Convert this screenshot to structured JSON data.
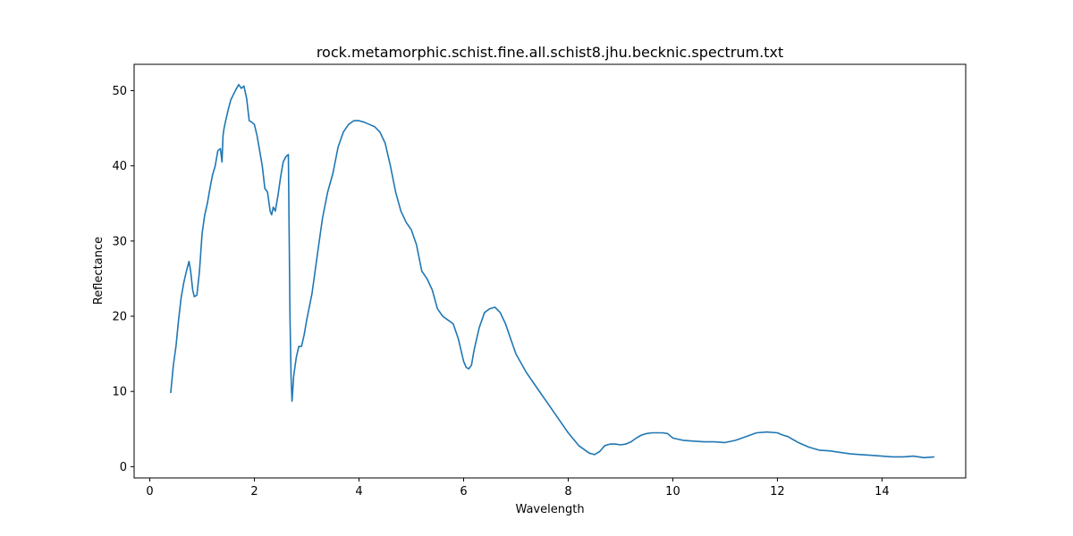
{
  "chart_data": {
    "type": "line",
    "title": "rock.metamorphic.schist.fine.all.schist8.jhu.becknic.spectrum.txt",
    "xlabel": "Wavelength",
    "ylabel": "Reflectance",
    "xlim": [
      -0.3,
      15.6
    ],
    "ylim": [
      -1.5,
      53.5
    ],
    "xticks": [
      0,
      2,
      4,
      6,
      8,
      10,
      12,
      14
    ],
    "yticks": [
      0,
      10,
      20,
      30,
      40,
      50
    ],
    "grid": false,
    "legend": "none",
    "series": [
      {
        "color": "#1f77b4",
        "x": [
          0.4,
          0.45,
          0.5,
          0.55,
          0.6,
          0.65,
          0.7,
          0.75,
          0.78,
          0.82,
          0.85,
          0.9,
          0.95,
          1.0,
          1.05,
          1.1,
          1.15,
          1.2,
          1.25,
          1.3,
          1.35,
          1.38,
          1.4,
          1.42,
          1.45,
          1.5,
          1.55,
          1.6,
          1.65,
          1.7,
          1.75,
          1.8,
          1.85,
          1.9,
          1.95,
          2.0,
          2.05,
          2.1,
          2.15,
          2.2,
          2.25,
          2.3,
          2.33,
          2.36,
          2.4,
          2.45,
          2.5,
          2.55,
          2.6,
          2.65,
          2.68,
          2.7,
          2.72,
          2.75,
          2.8,
          2.85,
          2.9,
          2.95,
          3.0,
          3.1,
          3.2,
          3.3,
          3.4,
          3.5,
          3.6,
          3.7,
          3.8,
          3.9,
          4.0,
          4.1,
          4.2,
          4.3,
          4.4,
          4.5,
          4.6,
          4.7,
          4.8,
          4.9,
          5.0,
          5.1,
          5.2,
          5.3,
          5.4,
          5.5,
          5.6,
          5.7,
          5.8,
          5.9,
          6.0,
          6.05,
          6.1,
          6.15,
          6.2,
          6.3,
          6.4,
          6.5,
          6.6,
          6.7,
          6.8,
          6.9,
          7.0,
          7.2,
          7.4,
          7.6,
          7.8,
          8.0,
          8.2,
          8.4,
          8.5,
          8.6,
          8.7,
          8.8,
          8.9,
          9.0,
          9.1,
          9.2,
          9.3,
          9.4,
          9.5,
          9.6,
          9.7,
          9.8,
          9.9,
          10.0,
          10.2,
          10.4,
          10.6,
          10.8,
          11.0,
          11.2,
          11.4,
          11.6,
          11.8,
          12.0,
          12.1,
          12.2,
          12.4,
          12.6,
          12.8,
          13.0,
          13.2,
          13.4,
          13.6,
          13.8,
          14.0,
          14.2,
          14.4,
          14.6,
          14.8,
          15.0
        ],
        "y": [
          9.8,
          13.5,
          16.0,
          19.5,
          22.5,
          24.5,
          26.0,
          27.3,
          26.0,
          23.5,
          22.6,
          22.8,
          26.0,
          31.0,
          33.5,
          35.0,
          37.0,
          38.8,
          40.0,
          42.0,
          42.3,
          40.5,
          44.0,
          45.0,
          46.0,
          47.5,
          48.8,
          49.5,
          50.2,
          50.8,
          50.3,
          50.6,
          49.0,
          46.0,
          45.8,
          45.5,
          44.0,
          42.0,
          40.0,
          37.0,
          36.5,
          34.0,
          33.5,
          34.5,
          34.0,
          36.0,
          38.5,
          40.5,
          41.2,
          41.5,
          20.0,
          12.0,
          8.7,
          12.0,
          14.5,
          16.0,
          16.0,
          17.5,
          19.5,
          23.0,
          28.0,
          33.0,
          36.5,
          39.0,
          42.5,
          44.5,
          45.5,
          46.0,
          46.0,
          45.8,
          45.5,
          45.2,
          44.5,
          43.0,
          40.0,
          36.5,
          34.0,
          32.5,
          31.5,
          29.5,
          26.0,
          25.0,
          23.5,
          21.0,
          20.0,
          19.5,
          19.0,
          17.0,
          14.0,
          13.2,
          13.0,
          13.5,
          15.5,
          18.5,
          20.5,
          21.0,
          21.2,
          20.5,
          19.0,
          17.0,
          15.0,
          12.5,
          10.5,
          8.5,
          6.5,
          4.5,
          2.8,
          1.8,
          1.6,
          2.0,
          2.8,
          3.0,
          3.0,
          2.9,
          3.0,
          3.3,
          3.8,
          4.2,
          4.4,
          4.5,
          4.5,
          4.5,
          4.4,
          3.8,
          3.5,
          3.4,
          3.3,
          3.3,
          3.2,
          3.5,
          4.0,
          4.5,
          4.6,
          4.5,
          4.2,
          4.0,
          3.2,
          2.6,
          2.2,
          2.1,
          1.9,
          1.7,
          1.6,
          1.5,
          1.4,
          1.3,
          1.3,
          1.4,
          1.2,
          1.3
        ]
      }
    ]
  }
}
